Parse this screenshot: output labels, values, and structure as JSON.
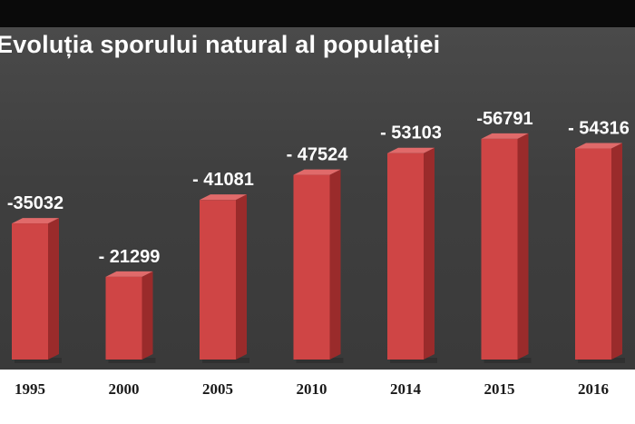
{
  "chart_data": {
    "type": "bar",
    "title": "Evoluția sporului natural al populației",
    "categories": [
      "1995",
      "2000",
      "2005",
      "2010",
      "2014",
      "2015",
      "2016"
    ],
    "values": [
      -35032,
      -21299,
      -41081,
      -47524,
      -53103,
      -56791,
      -54316
    ],
    "value_labels": [
      "-35032",
      "- 21299",
      "- 41081",
      "- 47524",
      "- 53103",
      "-56791",
      "- 54316"
    ],
    "xlabel": "",
    "ylabel": "",
    "grid": false,
    "legend": "none"
  },
  "colors": {
    "bar_front": "#cf4545",
    "bar_side": "#9a2b2b",
    "bar_top": "#e06a6a",
    "background": "#3f3f3f",
    "label_text": "#ffffff"
  }
}
